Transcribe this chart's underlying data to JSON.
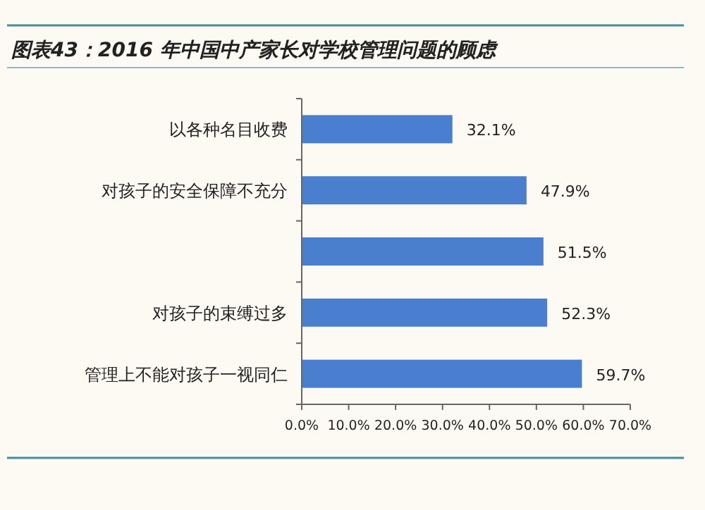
{
  "chart_data": {
    "type": "bar",
    "orientation": "horizontal",
    "title": "图表43：2016 年中国中产家长对学校管理问题的顾虑",
    "categories": [
      "以各种名目收费",
      "对孩子的安全保障不充分",
      null,
      "对孩子的束缚过多",
      "管理上不能对孩子一视同仁"
    ],
    "values": [
      32.1,
      47.9,
      51.5,
      52.3,
      59.7
    ],
    "value_labels": [
      "32.1%",
      "47.9%",
      "51.5%",
      "52.3%",
      "59.7%"
    ],
    "color": "#4a7ecf",
    "xlim": [
      0,
      70
    ],
    "xticks": [
      {
        "value": 0,
        "label": "0.0%"
      },
      {
        "value": 10,
        "label": "10.0%"
      },
      {
        "value": 20,
        "label": "20.0%"
      },
      {
        "value": 30,
        "label": "30.0%"
      },
      {
        "value": 40,
        "label": "40.0%"
      },
      {
        "value": 50,
        "label": "50.0%"
      },
      {
        "value": 60,
        "label": "60.0%"
      },
      {
        "value": 70,
        "label": "70.0%"
      }
    ],
    "grid": false
  }
}
